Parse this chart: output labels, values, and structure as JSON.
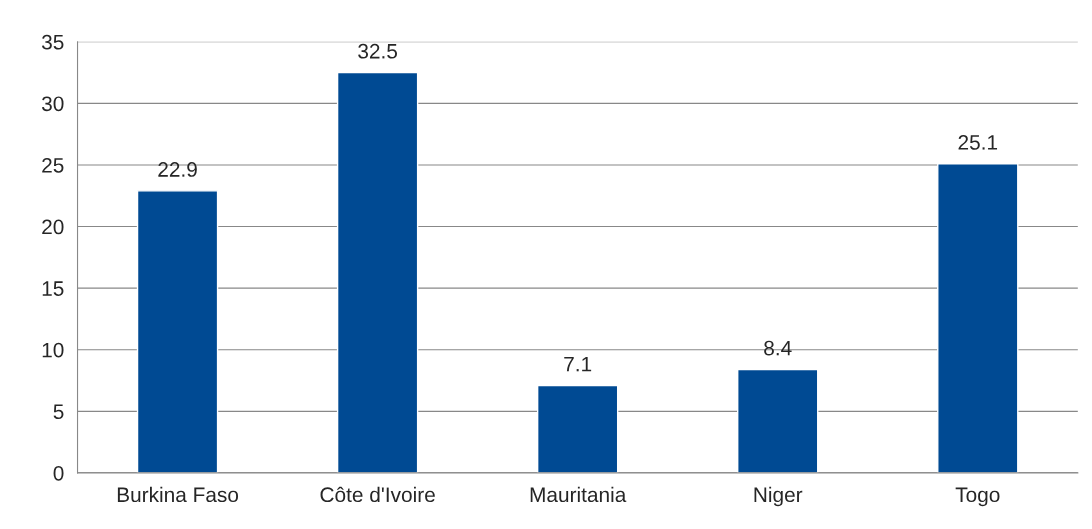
{
  "chart_data": {
    "type": "bar",
    "categories": [
      "Burkina Faso",
      "Côte d'Ivoire",
      "Mauritania",
      "Niger",
      "Togo"
    ],
    "values": [
      22.9,
      32.5,
      7.1,
      8.4,
      25.1
    ],
    "color": "#004a93",
    "ylim": [
      0,
      35
    ],
    "yticks": [
      0,
      5,
      10,
      15,
      20,
      25,
      30,
      35
    ],
    "grid": "y",
    "data_labels": true,
    "legend": false
  }
}
